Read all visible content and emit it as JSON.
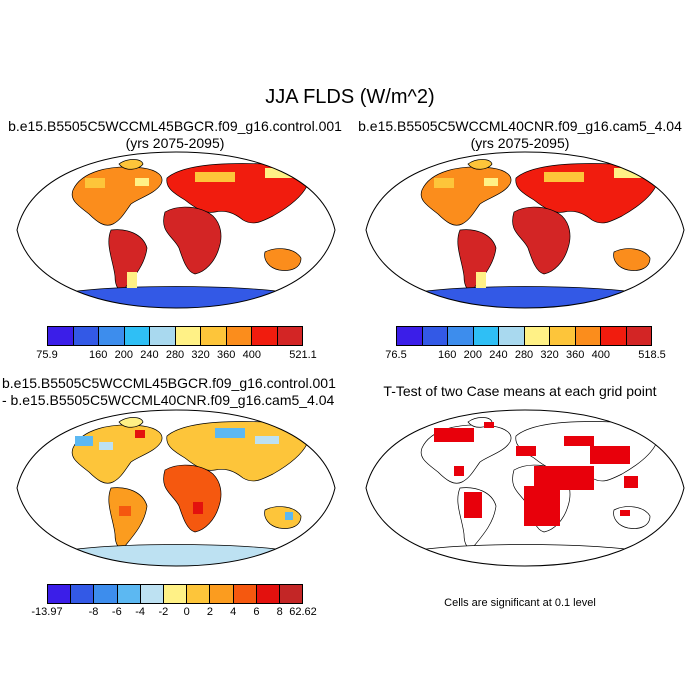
{
  "figure_title": "JJA FLDS (W/m^2)",
  "panels": [
    {
      "title_line1": "b.e15.B5505C5WCCML45BGCR.f09_g16.control.001",
      "title_line2": "(yrs 2075-2095)",
      "colorbar": {
        "colors": [
          "#3b1ee8",
          "#3359e6",
          "#3d8ded",
          "#2fbff5",
          "#a9d9ef",
          "#fff186",
          "#fdc53a",
          "#fb8d1c",
          "#f11c0e",
          "#d32525"
        ],
        "labels": [
          "75.9",
          "160",
          "200",
          "240",
          "280",
          "320",
          "360",
          "400",
          "521.1"
        ]
      }
    },
    {
      "title_line1": "b.e15.B5505C5WCCML40CNR.f09_g16.cam5_4.04",
      "title_line2": "(yrs 2075-2095)",
      "colorbar": {
        "colors": [
          "#3b1ee8",
          "#3359e6",
          "#3d8ded",
          "#2fbff5",
          "#a9d9ef",
          "#fff186",
          "#fdc53a",
          "#fb8d1c",
          "#f11c0e",
          "#d32525"
        ],
        "labels": [
          "76.5",
          "160",
          "200",
          "240",
          "280",
          "320",
          "360",
          "400",
          "518.5"
        ]
      }
    },
    {
      "title_line1": "b.e15.B5505C5WCCML45BGCR.f09_g16.control.001",
      "title_line2": "- b.e15.B5505C5WCCML40CNR.f09_g16.cam5_4.04",
      "colorbar": {
        "colors": [
          "#3b1ee8",
          "#3359e6",
          "#3d8ded",
          "#5cb8f2",
          "#bde1f2",
          "#fff186",
          "#fdc53a",
          "#fb9c1f",
          "#f5580f",
          "#e3110e",
          "#c32626"
        ],
        "labels": [
          "-13.97",
          "-8",
          "-6",
          "-4",
          "-2",
          "0",
          "2",
          "4",
          "6",
          "8",
          "62.62"
        ]
      }
    },
    {
      "title_line1": "T-Test of two Case means at each grid point",
      "note": "Cells are significant at 0.1 level",
      "significant_color": "#e8000b"
    }
  ]
}
